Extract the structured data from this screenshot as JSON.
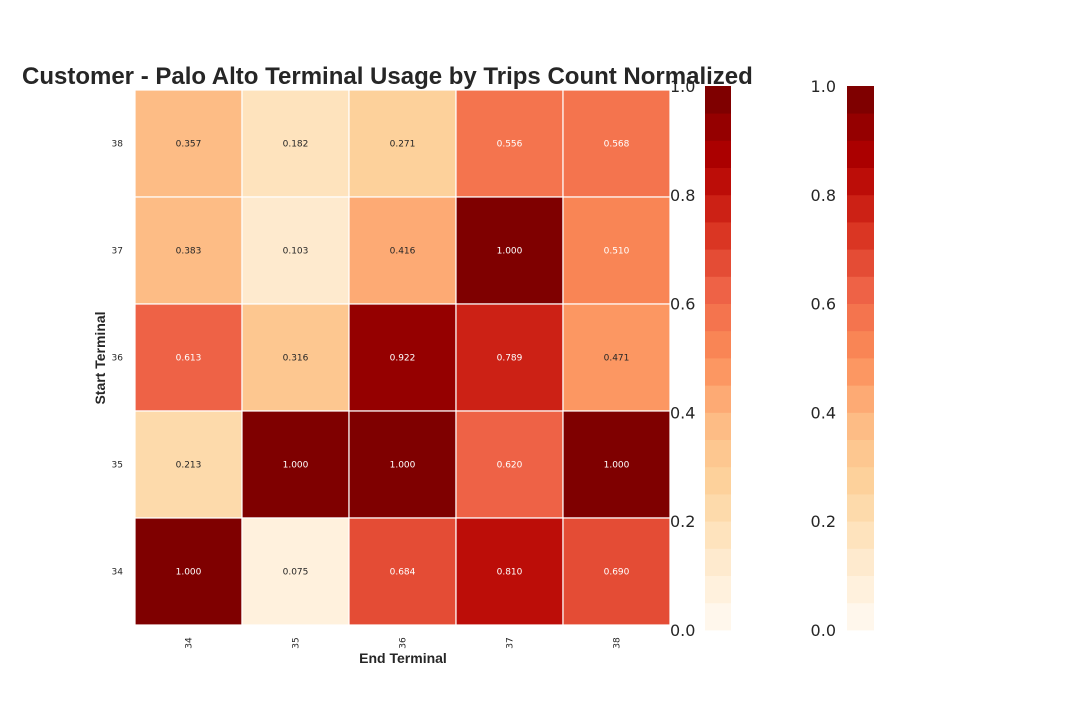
{
  "chart_data": {
    "type": "heatmap",
    "title": "Customer - Palo Alto Terminal Usage by Trips Count Normalized",
    "xlabel": "End Terminal",
    "ylabel": "Start Terminal",
    "x_categories": [
      "34",
      "35",
      "36",
      "37",
      "38"
    ],
    "y_categories": [
      "38",
      "37",
      "36",
      "35",
      "34"
    ],
    "values": [
      [
        0.357,
        0.182,
        0.271,
        0.556,
        0.568
      ],
      [
        0.383,
        0.103,
        0.416,
        1.0,
        0.51
      ],
      [
        0.613,
        0.316,
        0.922,
        0.789,
        0.471
      ],
      [
        0.213,
        1.0,
        1.0,
        0.62,
        1.0
      ],
      [
        1.0,
        0.075,
        0.684,
        0.81,
        0.69
      ]
    ],
    "value_labels": [
      [
        "0.357",
        "0.182",
        "0.271",
        "0.556",
        "0.568"
      ],
      [
        "0.383",
        "0.103",
        "0.416",
        "1.000",
        "0.510"
      ],
      [
        "0.613",
        "0.316",
        "0.922",
        "0.789",
        "0.471"
      ],
      [
        "0.213",
        "1.000",
        "1.000",
        "0.620",
        "1.000"
      ],
      [
        "1.000",
        "0.075",
        "0.684",
        "0.810",
        "0.690"
      ]
    ],
    "colormap": "OrRd",
    "color_levels": 20,
    "vmin": 0.0,
    "vmax": 1.0,
    "colorbars": [
      {
        "ticks": [
          "0.0",
          "0.2",
          "0.4",
          "0.6",
          "0.8",
          "1.0"
        ]
      },
      {
        "ticks": [
          "0.0",
          "0.2",
          "0.4",
          "0.6",
          "0.8",
          "1.0"
        ]
      }
    ],
    "palette": [
      "#fff7ec",
      "#fee8c8",
      "#fdd49e",
      "#fdbb84",
      "#fc8d59",
      "#ef6548",
      "#d7301f",
      "#b30000",
      "#7f0000"
    ],
    "grid": false
  }
}
